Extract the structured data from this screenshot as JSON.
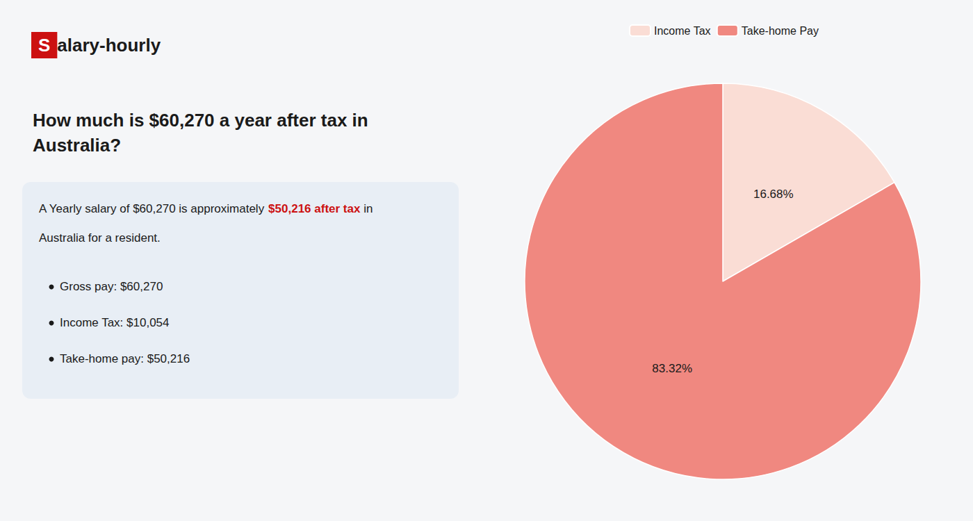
{
  "chart_data": {
    "type": "pie",
    "title": "How much is $60,270 a year after tax in\nAustralia?",
    "categories": [
      "Income Tax",
      "Take-home Pay"
    ],
    "values": [
      16.68,
      83.32
    ],
    "value_labels": [
      "16.68%",
      "83.32%"
    ],
    "colors": [
      "#faddd5",
      "#f08880"
    ],
    "data_labels": true,
    "legend": "top",
    "annotations": {
      "logo": [
        {
          "text": "S",
          "color": "#ffffff",
          "background": "#cc1111"
        },
        {
          "text": "alary-hourly"
        }
      ],
      "description": [
        [
          {
            "text": "A Yearly salary of $60,270 is approximately "
          },
          {
            "text": "$50,216 after tax",
            "color": "#cc1111",
            "bold": true
          },
          {
            "text": " in"
          }
        ],
        [
          {
            "text": "Australia for a resident."
          }
        ]
      ],
      "bullets": [
        "Gross pay: $60,270",
        "Income Tax: $10,054",
        "Take-home pay: $50,216"
      ]
    }
  }
}
